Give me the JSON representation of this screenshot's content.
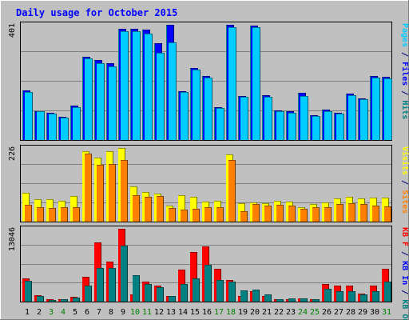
{
  "chart_data": {
    "type": "bar",
    "title": "Daily usage for October 2015",
    "categories": [
      "1",
      "2",
      "3",
      "4",
      "5",
      "6",
      "7",
      "8",
      "9",
      "10",
      "11",
      "12",
      "13",
      "14",
      "15",
      "16",
      "17",
      "18",
      "19",
      "20",
      "21",
      "22",
      "23",
      "24",
      "25",
      "26",
      "27",
      "28",
      "29",
      "30",
      "31"
    ],
    "weekend_days": [
      "3",
      "4",
      "10",
      "11",
      "17",
      "18",
      "24",
      "25",
      "31"
    ],
    "panels": [
      {
        "id": "top",
        "ymax_label": "401",
        "ymax": 401,
        "right_label": [
          {
            "text": "Pages",
            "color": "#00ccff"
          },
          {
            "text": " / ",
            "color": "#000080"
          },
          {
            "text": "Files",
            "color": "#0000ff"
          },
          {
            "text": " / ",
            "color": "#000080"
          },
          {
            "text": "Hits",
            "color": "#008080"
          }
        ],
        "series": [
          {
            "name": "Hits",
            "color": "#008080",
            "values": [
              172,
              101,
              96,
              82,
              119,
              289,
              278,
              268,
              386,
              386,
              385,
              337,
              401,
              170,
              251,
              224,
              114,
              401,
              154,
              398,
              157,
              102,
              100,
              163,
              87,
              105,
              94,
              162,
              145,
              222,
              219
            ]
          },
          {
            "name": "Files",
            "color": "#0000ff",
            "values": [
              172,
              101,
              96,
              82,
              119,
              289,
              278,
              268,
              386,
              386,
              385,
              337,
              401,
              170,
              251,
              224,
              114,
              401,
              154,
              398,
              157,
              102,
              100,
              163,
              87,
              105,
              94,
              162,
              145,
              222,
              219
            ]
          },
          {
            "name": "Pages",
            "color": "#00ccff",
            "values": [
              168,
              99,
              91,
              78,
              114,
              284,
              268,
              256,
              380,
              380,
              370,
              303,
              339,
              167,
              246,
              218,
              110,
              394,
              150,
              392,
              151,
              99,
              96,
              152,
              83,
              100,
              91,
              156,
              142,
              217,
              215
            ]
          }
        ]
      },
      {
        "id": "middle",
        "ymax_label": "226",
        "ymax": 226,
        "right_label": [
          {
            "text": "Visits",
            "color": "#ffff00"
          },
          {
            "text": " / ",
            "color": "#000080"
          },
          {
            "text": "Sites",
            "color": "#ff8000"
          }
        ],
        "series": [
          {
            "name": "Visits",
            "color": "#ffff00",
            "values": [
              89,
              70,
              69,
              65,
              78,
              216,
              196,
              216,
              226,
              109,
              91,
              86,
              50,
              81,
              75,
              62,
              63,
              207,
              56,
              58,
              56,
              63,
              61,
              45,
              53,
              60,
              72,
              76,
              71,
              73,
              73
            ]
          },
          {
            "name": "Sites",
            "color": "#ff8000",
            "values": [
              51,
              43,
              42,
              43,
              45,
              208,
              174,
              178,
              190,
              80,
              76,
              78,
              42,
              38,
              40,
              44,
              44,
              189,
              33,
              53,
              48,
              51,
              49,
              39,
              43,
              45,
              55,
              56,
              55,
              50,
              46
            ]
          }
        ]
      },
      {
        "id": "bottom",
        "ymax_label": "13046",
        "ymax": 13046,
        "right_label": [
          {
            "text": "KB F",
            "color": "#ff0000"
          },
          {
            "text": " / ",
            "color": "#000080"
          },
          {
            "text": "KB In",
            "color": "#0000ff"
          },
          {
            "text": " / ",
            "color": "#000080"
          },
          {
            "text": "KB Out",
            "color": "#008080"
          }
        ],
        "series": [
          {
            "name": "KB F",
            "color": "#ff0000",
            "values": [
              4138,
              1085,
              396,
              419,
              868,
              4427,
              10547,
              7233,
              13046,
              1256,
              3593,
              2888,
              1018,
              5722,
              8883,
              9824,
              5918,
              3846,
              1000,
              1826,
              1000,
              378,
              500,
              538,
              390,
              3179,
              2880,
              2879,
              1426,
              2821,
              5826
            ]
          },
          {
            "name": "KB Out",
            "color": "#008080",
            "values": [
              3732,
              963,
              350,
              425,
              665,
              2817,
              6003,
              6028,
              10000,
              4715,
              3110,
              2580,
              1006,
              3180,
              4140,
              6630,
              3933,
              3570,
              2000,
              2140,
              1287,
              463,
              575,
              505,
              396,
              2240,
              1828,
              1875,
              1282,
              1929,
              3628
            ]
          }
        ]
      }
    ]
  }
}
